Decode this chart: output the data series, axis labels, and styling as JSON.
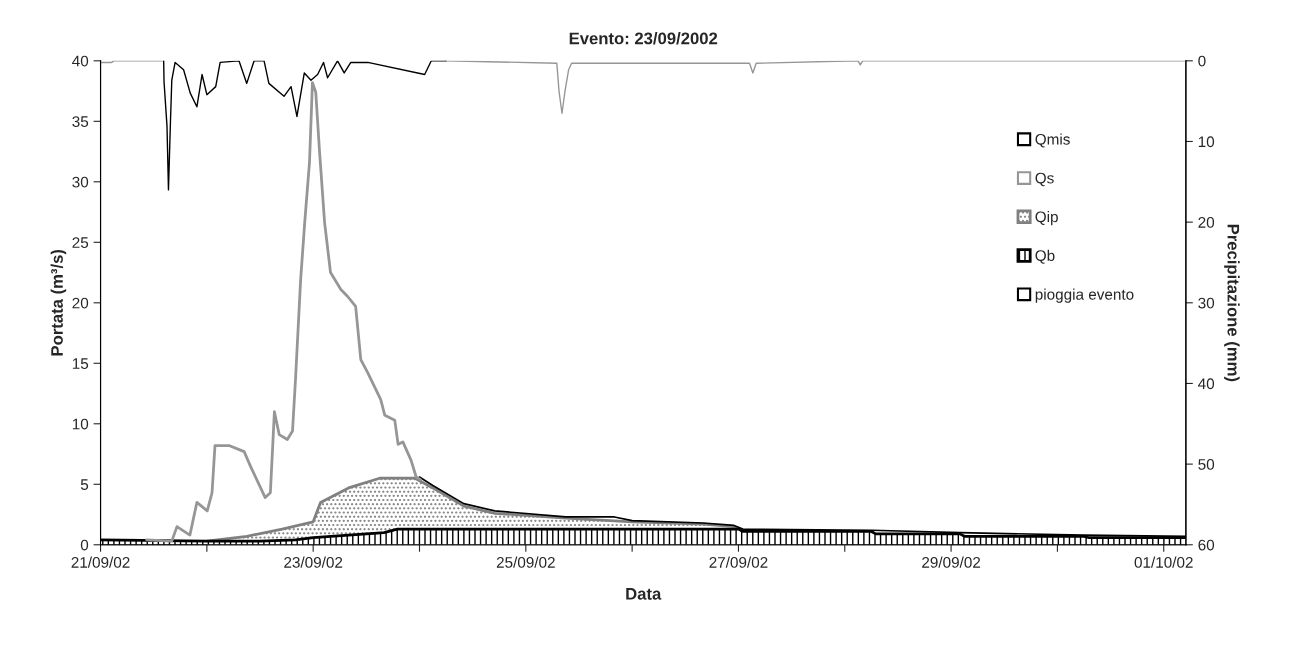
{
  "chart_data": {
    "type": "line",
    "title": "Evento: 23/09/2002",
    "xlabel": "Data",
    "ylabel": "Portata (m³/s)",
    "y2label": "Precipitazione (mm)",
    "xlim": [
      "2002-09-21T00:00",
      "2002-10-01T05:00"
    ],
    "xticks": [
      {
        "value": "2002-09-21",
        "label": "21/09/02"
      },
      {
        "value": "2002-09-22",
        "label": null
      },
      {
        "value": "2002-09-23",
        "label": "23/09/02"
      },
      {
        "value": "2002-09-24",
        "label": null
      },
      {
        "value": "2002-09-25",
        "label": "25/09/02"
      },
      {
        "value": "2002-09-26",
        "label": null
      },
      {
        "value": "2002-09-27",
        "label": "27/09/02"
      },
      {
        "value": "2002-09-28",
        "label": null
      },
      {
        "value": "2002-09-29",
        "label": "29/09/02"
      },
      {
        "value": "2002-09-30",
        "label": null
      },
      {
        "value": "2002-10-01",
        "label": "01/10/02"
      }
    ],
    "ylim": [
      0,
      40
    ],
    "yticks": [
      0,
      5,
      10,
      15,
      20,
      25,
      30,
      35,
      40
    ],
    "y2lim": [
      60,
      0
    ],
    "y2ticks": [
      0,
      10,
      20,
      30,
      40,
      50,
      60
    ],
    "legend": "right",
    "grid": false,
    "series": [
      {
        "name": "Qmis",
        "color": "#000000",
        "x": [
          "2002-09-24T00:00",
          "2002-09-24T03:00",
          "2002-09-24T10:00",
          "2002-09-24T17:00",
          "2002-09-25T09:00",
          "2002-09-25T20:00",
          "2002-09-26T00:00",
          "2002-09-26T16:00",
          "2002-09-26T23:00",
          "2002-09-27T01:00",
          "2002-09-28T06:00",
          "2002-09-29T02:00",
          "2002-09-30T06:00",
          "2002-10-01T05:00"
        ],
        "values": [
          5.6,
          4.9,
          3.4,
          2.8,
          2.3,
          2.3,
          2.0,
          1.8,
          1.6,
          1.3,
          1.2,
          1.0,
          0.8,
          0.7
        ]
      },
      {
        "name": "Qs",
        "color": "#969696",
        "x": [
          "2002-09-21T10:25",
          "2002-09-21T16:05",
          "2002-09-21T17:15",
          "2002-09-21T20:10",
          "2002-09-21T21:45",
          "2002-09-22T00:05",
          "2002-09-22T01:10",
          "2002-09-22T01:50",
          "2002-09-22T05:00",
          "2002-09-22T08:25",
          "2002-09-22T09:50",
          "2002-09-22T13:10",
          "2002-09-22T14:20",
          "2002-09-22T15:15",
          "2002-09-22T16:20",
          "2002-09-22T18:10",
          "2002-09-22T19:20",
          "2002-09-22T20:00",
          "2002-09-22T21:10",
          "2002-09-22T22:05",
          "2002-09-22T23:10",
          "2002-09-22T23:50",
          "2002-09-23T00:35",
          "2002-09-23T01:25",
          "2002-09-23T02:35",
          "2002-09-23T03:55",
          "2002-09-23T06:15",
          "2002-09-23T07:50",
          "2002-09-23T09:35",
          "2002-09-23T10:45",
          "2002-09-23T12:20",
          "2002-09-23T15:15",
          "2002-09-23T16:10",
          "2002-09-23T18:25",
          "2002-09-23T19:10",
          "2002-09-23T20:15",
          "2002-09-23T22:05",
          "2002-09-23T23:15",
          "2002-09-24T00:10"
        ],
        "values": [
          0.4,
          0.3,
          1.5,
          0.8,
          3.5,
          2.8,
          4.3,
          8.2,
          8.2,
          7.7,
          6.5,
          3.9,
          4.3,
          11.0,
          9.1,
          8.7,
          9.4,
          13.6,
          21.9,
          26.6,
          31.6,
          38.2,
          37.4,
          32.6,
          26.6,
          22.5,
          21.1,
          20.5,
          19.7,
          15.3,
          14.2,
          12.0,
          10.7,
          10.3,
          8.3,
          8.5,
          7.0,
          5.6,
          5.4
        ]
      },
      {
        "name": "Qip",
        "type": "area",
        "color": "#808080",
        "x": [
          "2002-09-22T00:00",
          "2002-09-22T09:00",
          "2002-09-22T17:00",
          "2002-09-23T00:00",
          "2002-09-23T01:40",
          "2002-09-23T08:00",
          "2002-09-23T15:00",
          "2002-09-23T23:00",
          "2002-09-24T03:00",
          "2002-09-24T10:00",
          "2002-09-24T17:00",
          "2002-09-25T09:00",
          "2002-09-26T00:00",
          "2002-09-26T16:00",
          "2002-09-26T23:00",
          "2002-09-27T00:00"
        ],
        "values": [
          0.3,
          0.7,
          1.3,
          1.9,
          3.5,
          4.7,
          5.5,
          5.5,
          4.7,
          3.2,
          2.6,
          2.2,
          1.9,
          1.7,
          1.5,
          1.3
        ]
      },
      {
        "name": "Qb",
        "type": "area",
        "color": "#000000",
        "x": [
          "2002-09-21T00:00",
          "2002-09-22T00:00",
          "2002-09-22T12:00",
          "2002-09-22T20:00",
          "2002-09-23T00:00",
          "2002-09-23T08:00",
          "2002-09-23T16:00",
          "2002-09-23T19:00",
          "2002-09-27T00:00",
          "2002-09-27T01:00",
          "2002-09-28T06:00",
          "2002-09-28T07:00",
          "2002-09-29T02:00",
          "2002-09-29T03:00",
          "2002-09-30T06:00",
          "2002-09-30T07:00",
          "2002-10-01T05:00"
        ],
        "values": [
          0.4,
          0.3,
          0.3,
          0.4,
          0.6,
          0.8,
          1.0,
          1.3,
          1.3,
          1.1,
          1.1,
          0.9,
          0.9,
          0.7,
          0.7,
          0.6,
          0.6
        ]
      },
      {
        "axis": "y2",
        "color": "#969696",
        "x": [
          "2002-09-21T00:00",
          "2002-09-21T02:30",
          "2002-09-21T03:00",
          "2002-09-21T14:15",
          "2002-09-21T14:20",
          "2002-09-24T06:00",
          "2002-09-25T07:00",
          "2002-09-25T07:30",
          "2002-09-25T08:10",
          "2002-09-25T08:50",
          "2002-09-25T09:40",
          "2002-09-25T10:20",
          "2002-09-27T02:30",
          "2002-09-27T03:15",
          "2002-09-27T04:00",
          "2002-09-28T03:00",
          "2002-09-28T03:30",
          "2002-09-28T04:00",
          "2002-10-01T05:00"
        ],
        "values": [
          0.2,
          0.2,
          0,
          0,
          null,
          0,
          0.3,
          3.8,
          6.5,
          3.8,
          1.1,
          0.3,
          0.3,
          1.5,
          0.3,
          0,
          0.5,
          0,
          0
        ]
      },
      {
        "name": "pioggia evento",
        "axis": "y2",
        "color": "#000000",
        "x": [
          "2002-09-21T14:15",
          "2002-09-21T14:20",
          "2002-09-21T15:00",
          "2002-09-21T15:20",
          "2002-09-21T15:45",
          "2002-09-21T16:05",
          "2002-09-21T16:50",
          "2002-09-21T18:45",
          "2002-09-21T20:15",
          "2002-09-21T21:45",
          "2002-09-21T22:55",
          "2002-09-22T00:00",
          "2002-09-22T02:00",
          "2002-09-22T03:00",
          "2002-09-22T07:15",
          "2002-09-22T09:00",
          "2002-09-22T10:40",
          "2002-09-22T12:55",
          "2002-09-22T14:00",
          "2002-09-22T17:25",
          "2002-09-22T19:00",
          "2002-09-22T20:20",
          "2002-09-22T22:00",
          "2002-09-22T23:30",
          "2002-09-23T01:00",
          "2002-09-23T02:20",
          "2002-09-23T03:15",
          "2002-09-23T05:30",
          "2002-09-23T07:00",
          "2002-09-23T08:30",
          "2002-09-23T12:20",
          "2002-09-24T01:10",
          "2002-09-24T02:40",
          "2002-09-24T06:00"
        ],
        "values": [
          0,
          2.6,
          8.1,
          16.0,
          8.1,
          2.4,
          0.2,
          1.1,
          4.0,
          5.7,
          1.7,
          4.2,
          3.2,
          0.2,
          0,
          2.8,
          0,
          0,
          2.8,
          4.4,
          3.2,
          6.9,
          1.5,
          2.4,
          1.7,
          0.2,
          2.1,
          0,
          1.5,
          0.2,
          0.2,
          1.7,
          0,
          0
        ]
      }
    ]
  }
}
